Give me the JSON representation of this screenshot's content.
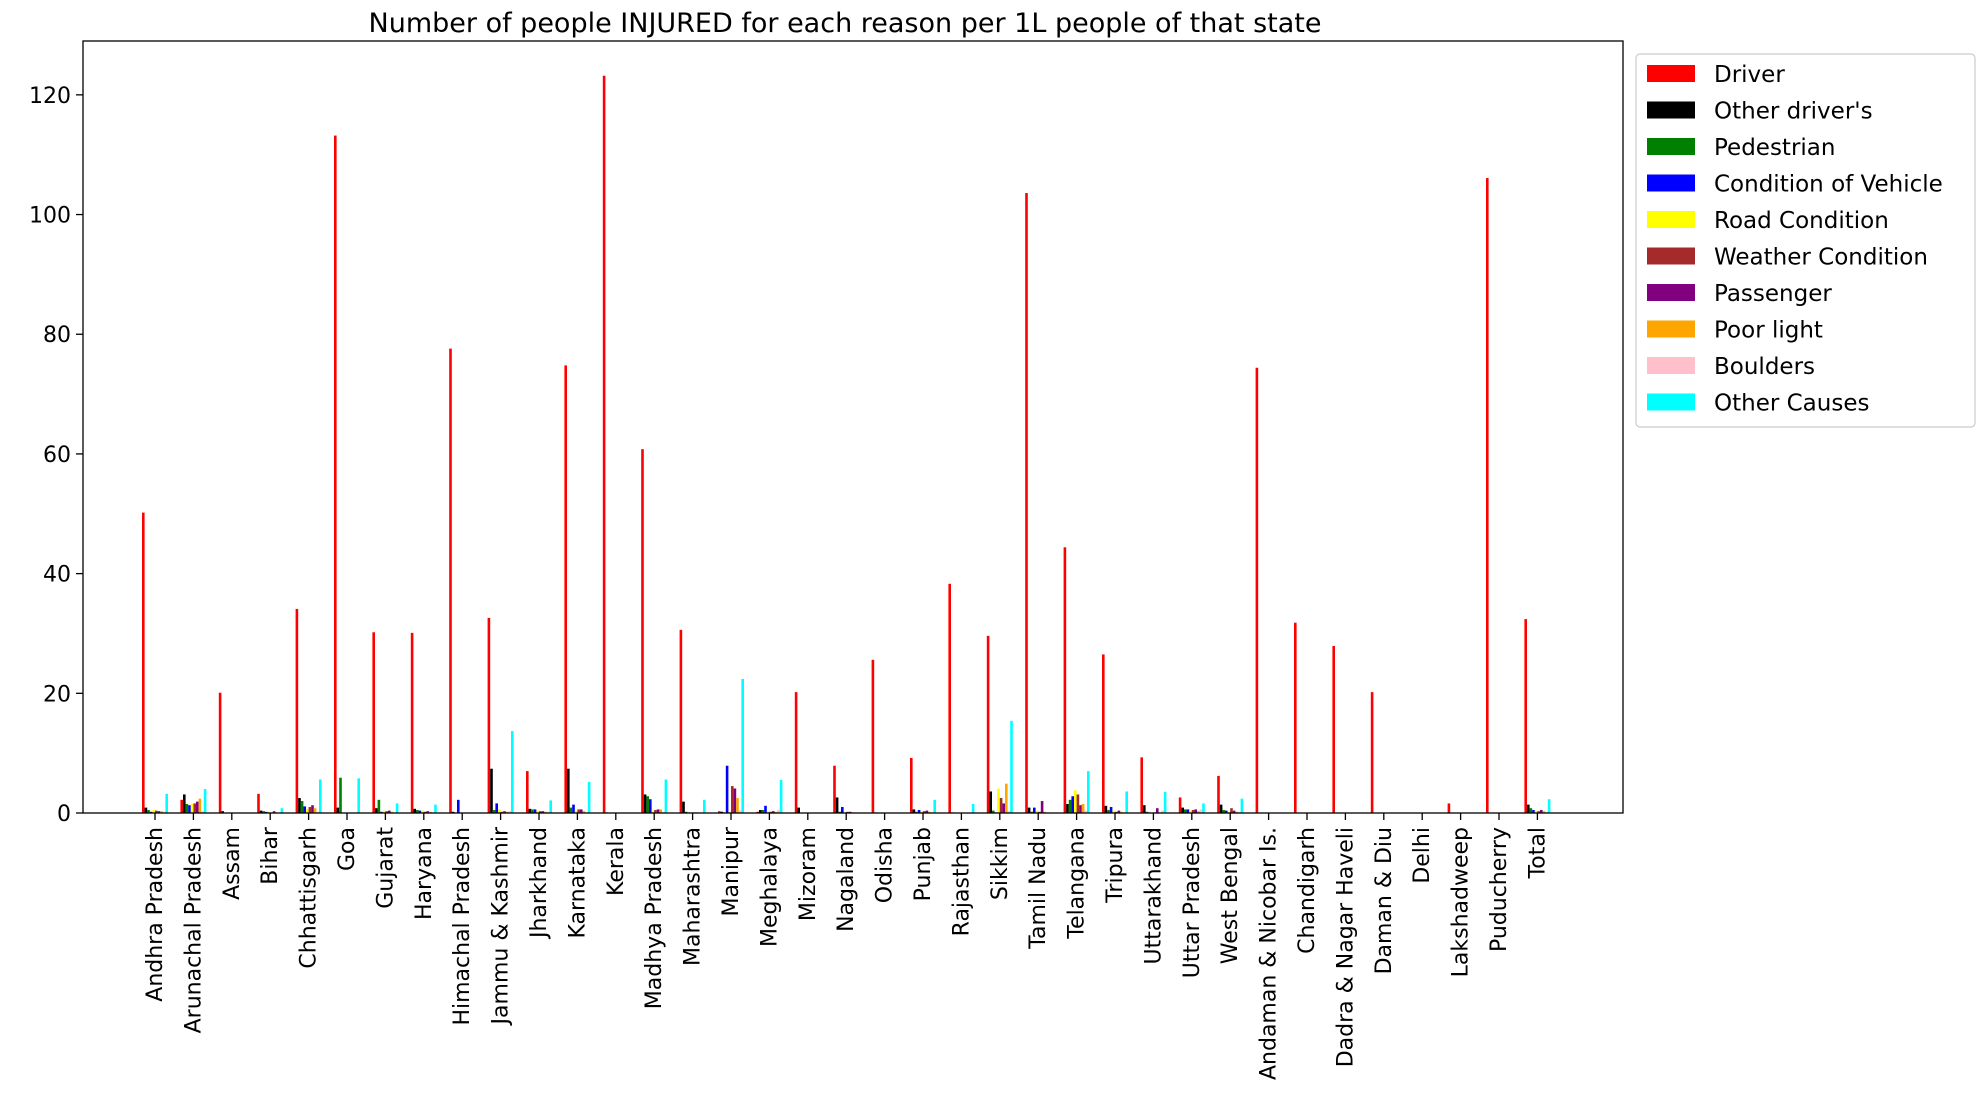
{
  "chart_data": {
    "type": "bar",
    "title": "Number of people INJURED for each reason per 1L people of that state",
    "xlabel": "",
    "ylabel": "",
    "ylim": [
      0,
      129
    ],
    "yticks": [
      0,
      20,
      40,
      60,
      80,
      100,
      120
    ],
    "grid": false,
    "legend_position": "outside top-right",
    "categories": [
      "Andhra Pradesh",
      "Arunachal Pradesh",
      "Assam",
      "Bihar",
      "Chhattisgarh",
      "Goa",
      "Gujarat",
      "Haryana",
      "Himachal Pradesh",
      "Jammu & Kashmir",
      "Jharkhand",
      "Karnataka",
      "Kerala",
      "Madhya Pradesh",
      "Maharashtra",
      "Manipur",
      "Meghalaya",
      "Mizoram",
      "Nagaland",
      "Odisha",
      "Punjab",
      "Rajasthan",
      "Sikkim",
      "Tamil Nadu",
      "Telangana",
      "Tripura",
      "Uttarakhand",
      "Uttar Pradesh",
      "West Bengal",
      "Andaman & Nicobar Is.",
      "Chandigarh",
      "Dadra & Nagar Haveli",
      "Daman & Diu",
      "Delhi",
      "Lakshadweep",
      "Puducherry",
      "Total"
    ],
    "series": [
      {
        "name": "Driver",
        "color": "#ff0000",
        "values": [
          50.2,
          2.2,
          20.1,
          3.2,
          34.1,
          113.2,
          30.2,
          30.1,
          77.6,
          32.6,
          7.0,
          74.8,
          123.2,
          60.8,
          30.6,
          0.3,
          0.2,
          20.2,
          7.9,
          25.6,
          9.2,
          38.3,
          29.6,
          103.6,
          44.4,
          26.5,
          9.3,
          2.6,
          6.2,
          74.4,
          31.8,
          27.9,
          20.2,
          0,
          1.6,
          106.1,
          32.4
        ]
      },
      {
        "name": "Other driver's",
        "color": "#000000",
        "values": [
          0.9,
          3.1,
          0.3,
          0.4,
          2.5,
          0.9,
          0.8,
          0.7,
          0.2,
          7.4,
          0.7,
          7.4,
          0.1,
          3.1,
          1.9,
          0.2,
          0.5,
          0.9,
          2.6,
          0.1,
          0.6,
          0.1,
          3.6,
          0.9,
          1.5,
          1.2,
          1.3,
          0.9,
          1.4,
          0,
          0,
          0,
          0,
          0,
          0,
          0,
          1.4
        ]
      },
      {
        "name": "Pedestrian",
        "color": "#008000",
        "values": [
          0.5,
          1.5,
          0,
          0.3,
          2.0,
          5.9,
          2.2,
          0.5,
          0,
          0.5,
          0.6,
          0.9,
          0,
          2.8,
          0.2,
          0,
          0.5,
          0,
          0.2,
          0,
          0.2,
          0,
          0.4,
          0.2,
          2.2,
          0.5,
          0.2,
          0.6,
          0.5,
          0,
          0,
          0,
          0,
          0,
          0,
          0,
          0.8
        ]
      },
      {
        "name": "Condition of Vehicle",
        "color": "#0000ff",
        "values": [
          0.2,
          1.3,
          0,
          0.2,
          1.1,
          0,
          0.2,
          0.4,
          2.2,
          1.6,
          0.6,
          1.4,
          0,
          2.3,
          0.1,
          7.9,
          1.2,
          0,
          1.0,
          0,
          0.5,
          0,
          0.1,
          0.9,
          2.8,
          1.0,
          0.1,
          0.6,
          0.4,
          0,
          0,
          0,
          0,
          0,
          0,
          0,
          0.5
        ]
      },
      {
        "name": "Road Condition",
        "color": "#ffff00",
        "values": [
          0.5,
          1.5,
          0,
          0.2,
          0.7,
          0,
          0.4,
          0.4,
          0,
          0.6,
          0.4,
          0.4,
          0,
          0.4,
          0.1,
          0.2,
          0.3,
          0,
          0.1,
          0,
          0.3,
          0,
          4.1,
          0.4,
          3.8,
          0.4,
          0.1,
          0.4,
          0.2,
          0,
          0,
          0,
          0,
          0,
          0,
          0,
          0.4
        ]
      },
      {
        "name": "Weather Condition",
        "color": "#a52a2a",
        "values": [
          0.4,
          1.6,
          0,
          0.1,
          1.0,
          0,
          0.3,
          0.2,
          0,
          0.2,
          0.3,
          0.6,
          0,
          0.5,
          0.1,
          4.5,
          0.2,
          0,
          0.2,
          0,
          0.3,
          0,
          2.5,
          0.2,
          3.1,
          0.2,
          0.1,
          0.5,
          0.8,
          0,
          0,
          0,
          0,
          0,
          0,
          0,
          0.3
        ]
      },
      {
        "name": "Passenger",
        "color": "#800080",
        "values": [
          0.3,
          1.9,
          0,
          0.3,
          1.3,
          0,
          0.4,
          0.3,
          0,
          0.3,
          0.3,
          0.6,
          0,
          0.6,
          0.1,
          4.1,
          0.3,
          0,
          0.2,
          0,
          0.4,
          0,
          1.6,
          2.0,
          1.3,
          0.4,
          0.8,
          0.6,
          0.4,
          0,
          0,
          0,
          0,
          0,
          0,
          0,
          0.5
        ]
      },
      {
        "name": "Poor light",
        "color": "#ffa500",
        "values": [
          0.3,
          2.4,
          0,
          0.1,
          0.8,
          0,
          0.2,
          0.2,
          0,
          0.2,
          0.2,
          0.3,
          0,
          0.6,
          0.1,
          2.5,
          0.2,
          0,
          0.1,
          0,
          0.2,
          0,
          4.9,
          0.2,
          1.5,
          0.2,
          0.1,
          0.3,
          0.2,
          0,
          0,
          0,
          0,
          0,
          0,
          0,
          0.3
        ]
      },
      {
        "name": "Boulders",
        "color": "#ffc0cb",
        "values": [
          0.2,
          0.3,
          0,
          0.1,
          0.2,
          0,
          0.1,
          0.1,
          0,
          0.3,
          0.2,
          0.1,
          0,
          0.2,
          0.1,
          0.4,
          0.5,
          0,
          0.1,
          0,
          0.1,
          0,
          0.3,
          0.1,
          0.4,
          0.1,
          0.4,
          0.6,
          0.1,
          0,
          0,
          0,
          0,
          0,
          0,
          0,
          0.2
        ]
      },
      {
        "name": "Other Causes",
        "color": "#00ffff",
        "values": [
          3.2,
          4.0,
          0,
          0.8,
          5.6,
          5.8,
          1.6,
          1.4,
          0,
          13.7,
          2.1,
          5.2,
          0,
          5.6,
          2.2,
          22.4,
          5.5,
          0,
          0,
          0,
          2.2,
          1.5,
          15.4,
          0,
          7.0,
          3.6,
          3.5,
          1.6,
          2.4,
          0,
          0,
          0,
          0,
          0,
          0,
          0,
          2.3
        ]
      }
    ]
  }
}
